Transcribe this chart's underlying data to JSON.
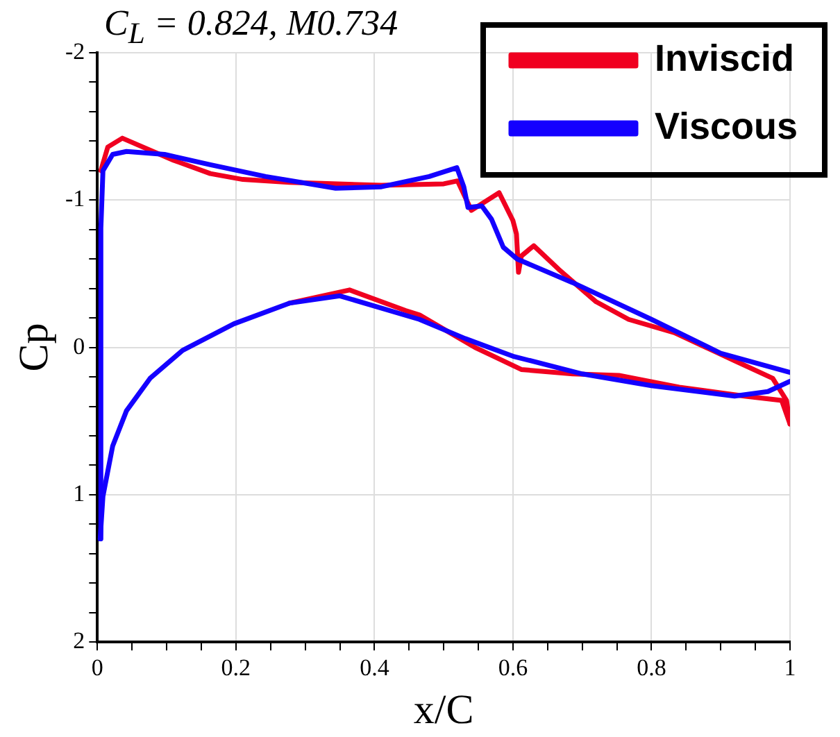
{
  "chart_data": {
    "type": "line",
    "title": "C$_{L}$ = 0.824, M0.734",
    "xlabel": "x/C",
    "ylabel": "Cp",
    "xlim": [
      0,
      1
    ],
    "xticks": [
      0,
      {
        "value": 0.05,
        "label": null
      },
      {
        "value": 0.1,
        "label": null
      },
      {
        "value": 0.15,
        "label": null
      },
      0.2,
      {
        "value": 0.25,
        "label": null
      },
      {
        "value": 0.3,
        "label": null
      },
      {
        "value": 0.35,
        "label": null
      },
      0.4,
      {
        "value": 0.45,
        "label": null
      },
      {
        "value": 0.5,
        "label": null
      },
      {
        "value": 0.55,
        "label": null
      },
      0.6,
      {
        "value": 0.65,
        "label": null
      },
      {
        "value": 0.7,
        "label": null
      },
      {
        "value": 0.75,
        "label": null
      },
      0.8,
      {
        "value": 0.85,
        "label": null
      },
      {
        "value": 0.9,
        "label": null
      },
      {
        "value": 0.95,
        "label": null
      },
      1
    ],
    "ylim": [
      2,
      -2
    ],
    "yticks": [
      -2,
      {
        "value": -1.8,
        "label": null
      },
      {
        "value": -1.6,
        "label": null
      },
      {
        "value": -1.4,
        "label": null
      },
      {
        "value": -1.2,
        "label": null
      },
      -1,
      {
        "value": -0.8,
        "label": null
      },
      {
        "value": -0.6,
        "label": null
      },
      {
        "value": -0.4,
        "label": null
      },
      {
        "value": -0.2,
        "label": null
      },
      0,
      {
        "value": 0.2,
        "label": null
      },
      {
        "value": 0.4,
        "label": null
      },
      {
        "value": 0.6,
        "label": null
      },
      {
        "value": 0.8,
        "label": null
      },
      1,
      {
        "value": 1.2,
        "label": null
      },
      {
        "value": 1.4,
        "label": null
      },
      {
        "value": 1.6,
        "label": null
      },
      {
        "value": 1.8,
        "label": null
      },
      2
    ],
    "grid": true,
    "legend": "top right",
    "marker": "none",
    "line_style": "solid",
    "series": [
      {
        "name": "Inviscid",
        "color": "#f00020",
        "x": [
          0.005,
          0.015,
          0.036,
          0.11,
          0.163,
          0.21,
          0.277,
          0.41,
          0.5,
          0.52,
          0.54,
          0.58,
          0.6,
          0.605,
          0.608,
          0.612,
          0.63,
          0.666,
          0.72,
          0.767,
          0.833,
          0.92,
          0.975,
          0.995,
          1.0
        ],
        "values": [
          -1.2,
          -1.36,
          -1.42,
          -1.27,
          -1.18,
          -1.14,
          -1.12,
          -1.1,
          -1.11,
          -1.13,
          -0.93,
          -1.05,
          -0.86,
          -0.77,
          -0.51,
          -0.62,
          -0.69,
          -0.53,
          -0.31,
          -0.19,
          -0.1,
          0.09,
          0.21,
          0.36,
          0.52
        ]
      },
      {
        "color": "#f00020",
        "x": [
          0.277,
          0.364,
          0.445,
          0.465,
          0.545,
          0.572,
          0.612,
          0.686,
          0.753,
          0.84,
          0.934,
          0.988,
          1.0
        ],
        "values": [
          -0.3,
          -0.39,
          -0.25,
          -0.22,
          0,
          0.06,
          0.15,
          0.18,
          0.19,
          0.27,
          0.33,
          0.36,
          0.52
        ]
      },
      {
        "name": "Viscous",
        "color": "#1400ff",
        "x": [
          0.004,
          0.005,
          0.008,
          0.022,
          0.042,
          0.097,
          0.163,
          0.243,
          0.344,
          0.41,
          0.479,
          0.519,
          0.529,
          0.535,
          0.555,
          0.569,
          0.586,
          0.606,
          0.686,
          0.8,
          0.9,
          1.0
        ],
        "values": [
          1.3,
          -0.81,
          -1.2,
          -1.31,
          -1.33,
          -1.31,
          -1.24,
          -1.16,
          -1.08,
          -1.09,
          -1.16,
          -1.22,
          -1.09,
          -0.95,
          -0.96,
          -0.87,
          -0.68,
          -0.6,
          -0.44,
          -0.19,
          0.04,
          0.17
        ]
      },
      {
        "color": "#1400ff",
        "x": [
          0.004,
          0.008,
          0.022,
          0.042,
          0.076,
          0.123,
          0.197,
          0.277,
          0.35,
          0.465,
          0.531,
          0.6,
          0.7,
          0.8,
          0.92,
          0.968,
          1.0
        ],
        "values": [
          1.3,
          1.01,
          0.67,
          0.43,
          0.21,
          0.02,
          -0.16,
          -0.3,
          -0.35,
          -0.19,
          -0.06,
          0.06,
          0.18,
          0.26,
          0.33,
          0.3,
          0.23
        ]
      }
    ]
  }
}
